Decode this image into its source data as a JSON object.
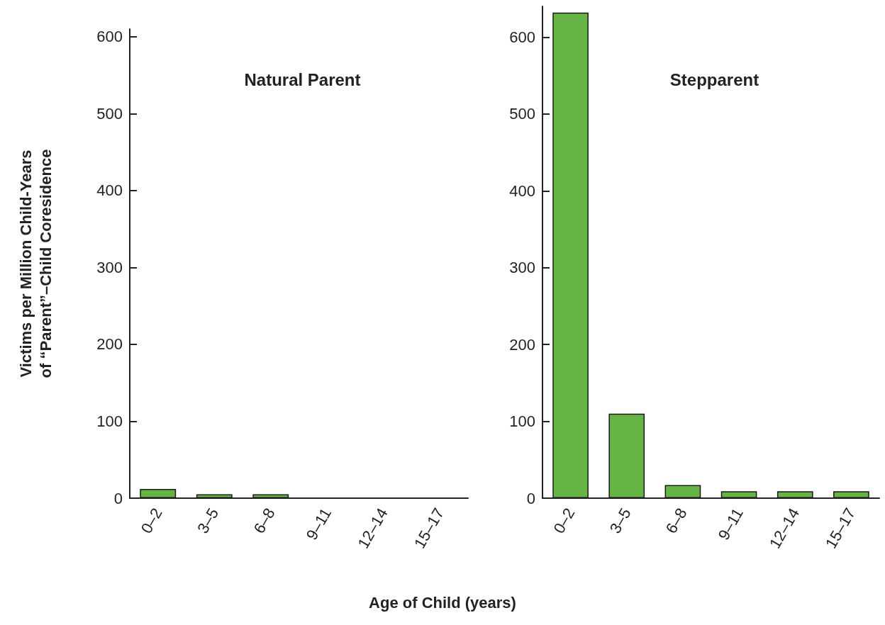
{
  "chart_data": [
    {
      "type": "bar",
      "title": "Natural Parent",
      "ylabel": "Victims per Million Child-Years\nof “Parent”–Child Coresidence",
      "xlabel": "Age of Child (years)",
      "categories": [
        "0–2",
        "3–5",
        "6–8",
        "9–11",
        "12–14",
        "15–17"
      ],
      "series": [
        {
          "color": "#66b446",
          "values": [
            12,
            5,
            5,
            0,
            0,
            0
          ]
        }
      ],
      "ylim": [
        0,
        610
      ],
      "yticks": [
        0,
        100,
        200,
        300,
        400,
        500,
        600
      ],
      "grid": false
    },
    {
      "type": "bar",
      "title": "Stepparent",
      "categories": [
        "0–2",
        "3–5",
        "6–8",
        "9–11",
        "12–14",
        "15–17"
      ],
      "series": [
        {
          "color": "#66b446",
          "values": [
            632,
            110,
            17,
            9,
            9,
            9
          ]
        }
      ],
      "ylim": [
        0,
        640
      ],
      "yticks": [
        0,
        100,
        200,
        300,
        400,
        500,
        600
      ],
      "grid": false
    }
  ]
}
